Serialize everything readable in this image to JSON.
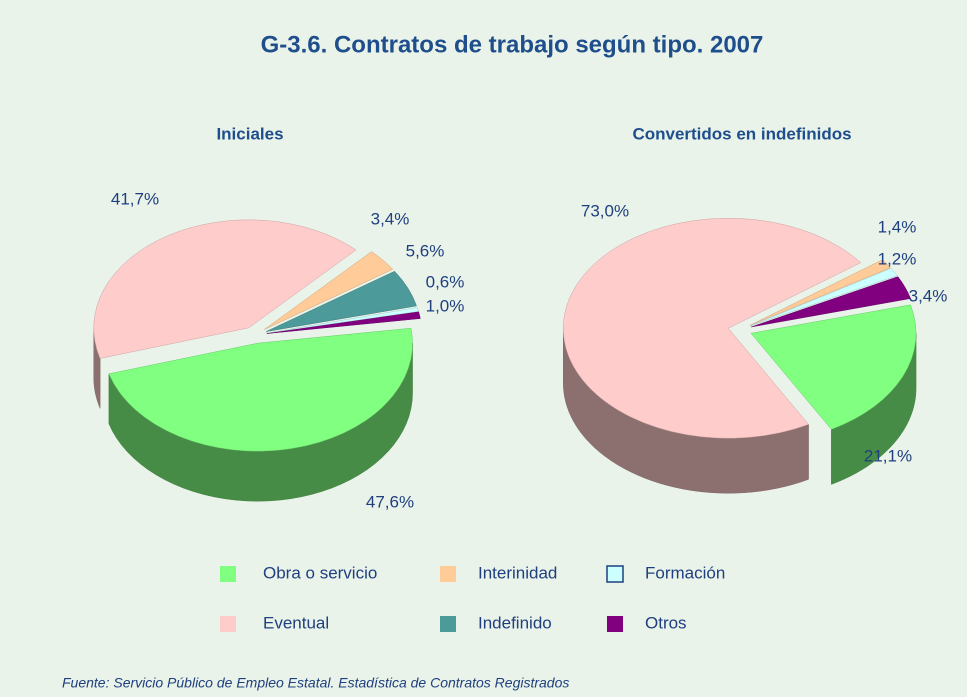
{
  "title": "G-3.6. Contratos de trabajo según tipo. 2007",
  "source": "Fuente: Servicio Público de Empleo Estatal. Estadística de Contratos Registrados",
  "chart_data": [
    {
      "type": "pie",
      "title": "Iniciales",
      "categories": [
        "Obra o servicio",
        "Eventual",
        "Interinidad",
        "Indefinido",
        "Formación",
        "Otros"
      ],
      "values": [
        47.6,
        41.7,
        3.4,
        5.6,
        0.6,
        1.0
      ],
      "value_labels": [
        "47,6%",
        "41,7%",
        "3,4%",
        "5,6%",
        "0,6%",
        "1,0%"
      ],
      "colors": [
        "#80ff80",
        "#ffcccc",
        "#ffcc99",
        "#4d9a9a",
        "#ccffff",
        "#800080"
      ]
    },
    {
      "type": "pie",
      "title": "Convertidos en indefinidos",
      "categories": [
        "Obra o servicio",
        "Eventual",
        "Interinidad",
        "Formación",
        "Otros"
      ],
      "values": [
        21.1,
        73.0,
        1.4,
        1.2,
        3.4
      ],
      "value_labels": [
        "21,1%",
        "73,0%",
        "1,4%",
        "1,2%",
        "3,4%"
      ],
      "colors": [
        "#80ff80",
        "#ffcccc",
        "#ffcc99",
        "#ccffff",
        "#800080"
      ]
    }
  ]
}
